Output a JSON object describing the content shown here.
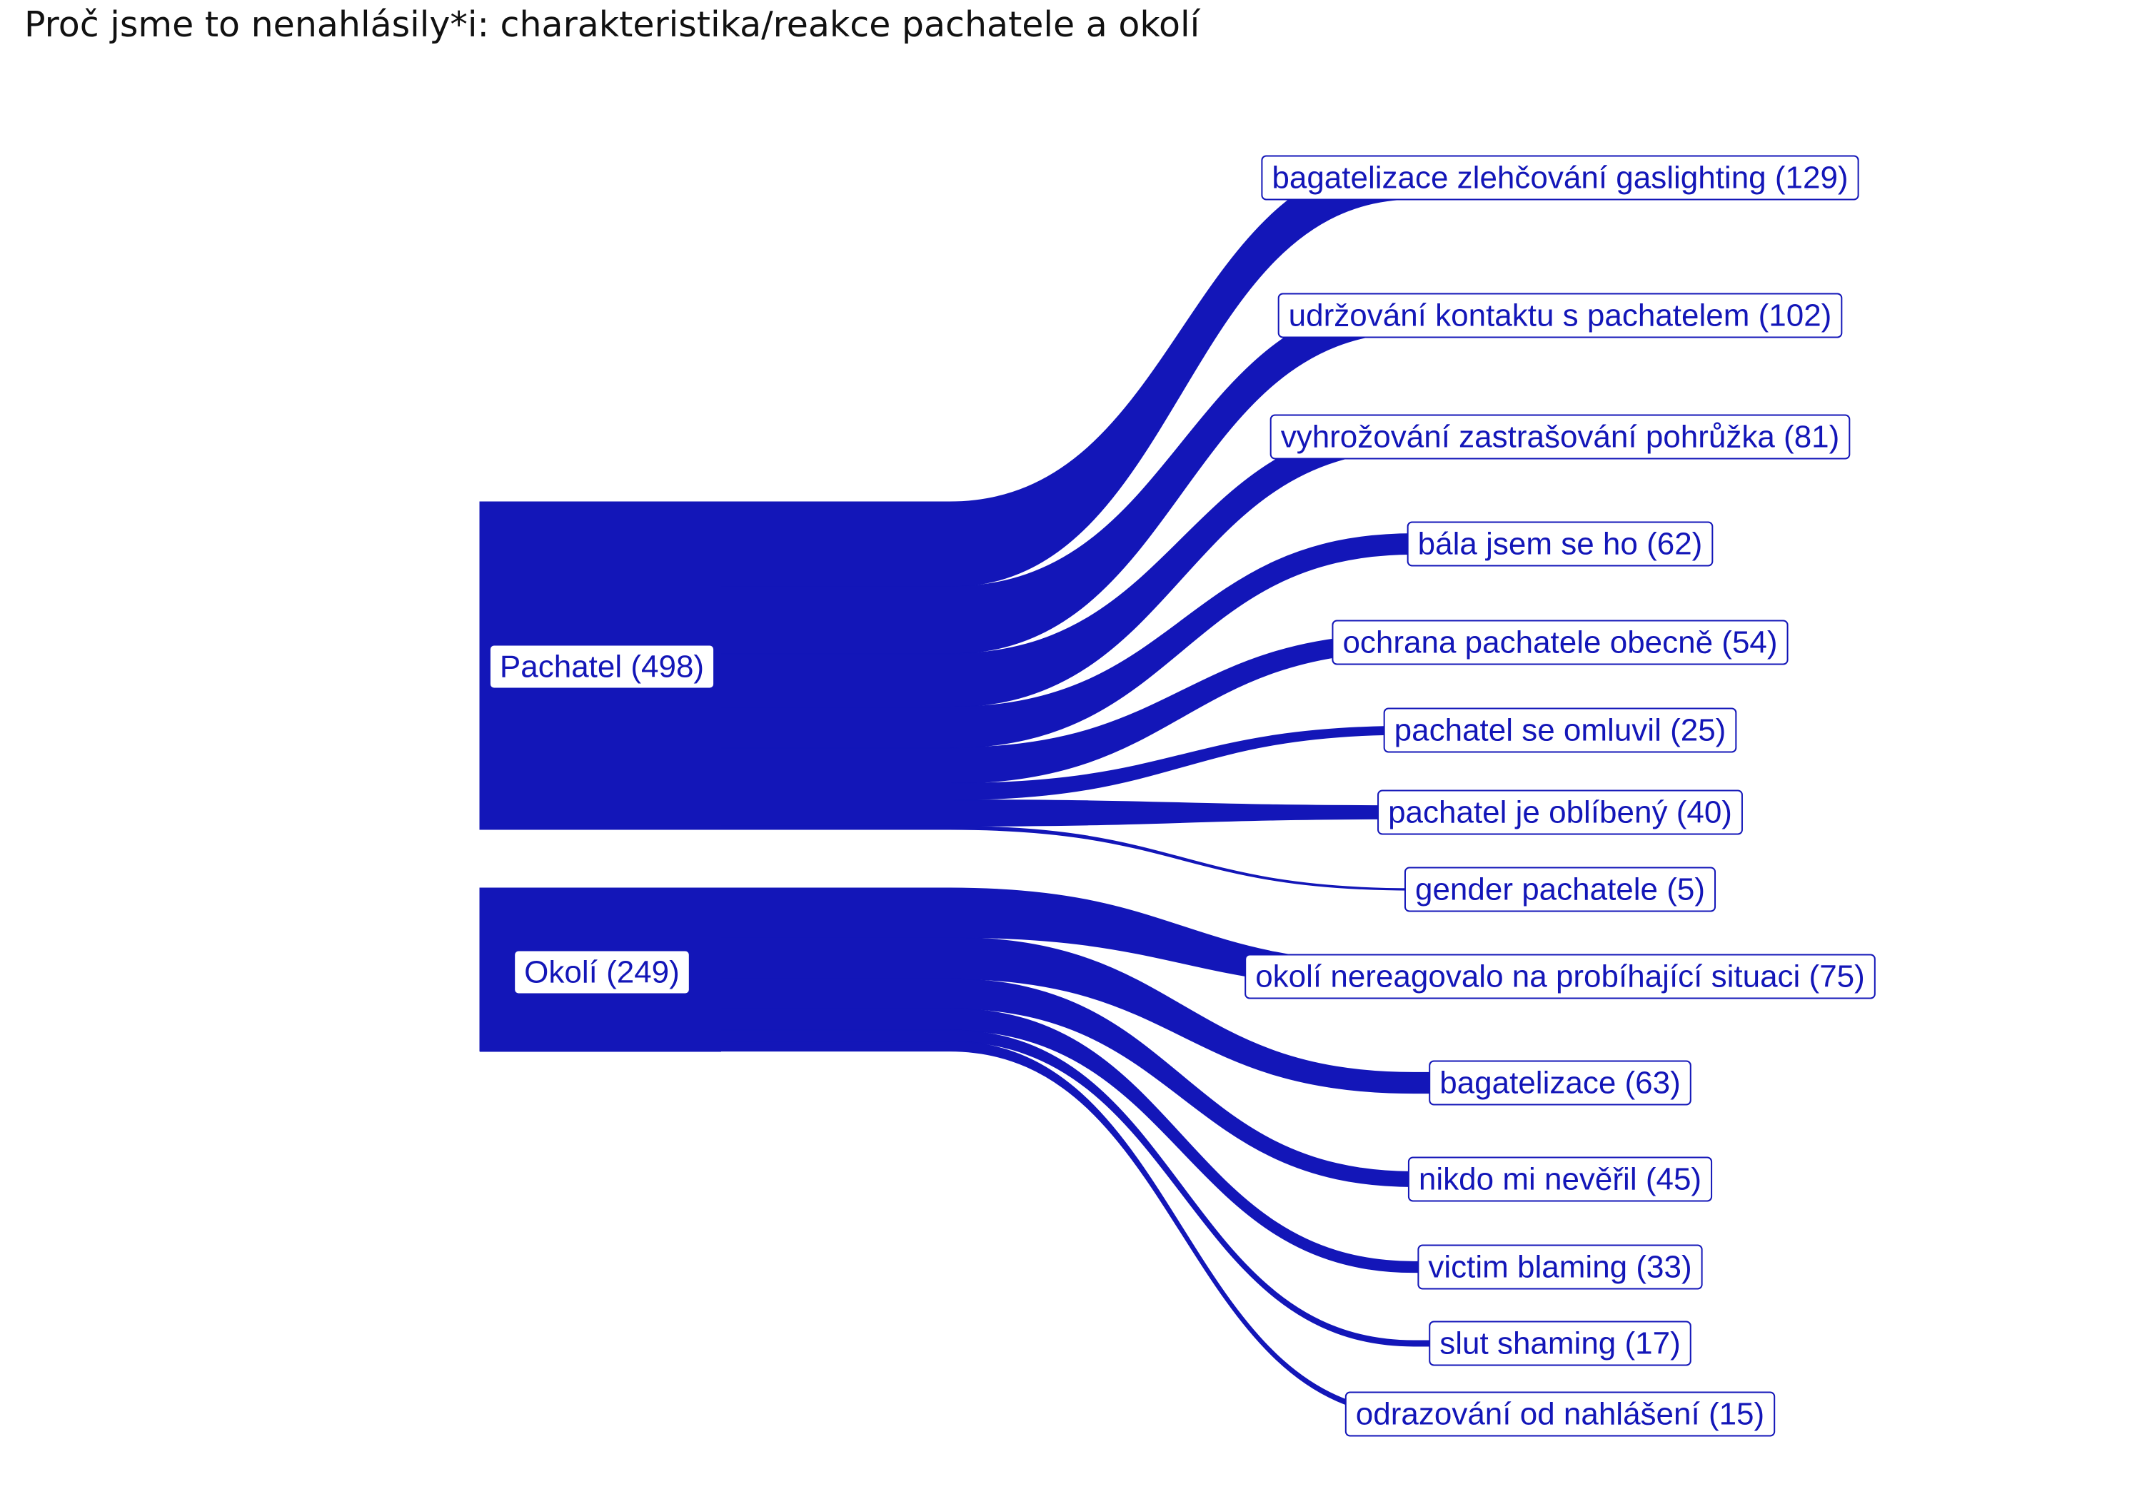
{
  "title": "Proč jsme to nenahlásily*i: charakteristika/reakce pachatele a okolí",
  "colors": {
    "flow": "#1316b8",
    "label_text": "#1316b8",
    "label_border": "#1316b8",
    "background": "#ffffff"
  },
  "chart_data": {
    "type": "sankey",
    "sources": [
      {
        "name": "Pachatel (498)",
        "value": 498
      },
      {
        "name": "Okolí (249)",
        "value": 249
      }
    ],
    "targets": [
      {
        "source": 0,
        "name": "bagatelizace zlehčování gaslighting (129)",
        "value": 129
      },
      {
        "source": 0,
        "name": "udržování kontaktu s pachatelem (102)",
        "value": 102
      },
      {
        "source": 0,
        "name": "vyhrožování zastrašování pohrůžka (81)",
        "value": 81
      },
      {
        "source": 0,
        "name": "bála jsem se ho (62)",
        "value": 62
      },
      {
        "source": 0,
        "name": "ochrana pachatele obecně (54)",
        "value": 54
      },
      {
        "source": 0,
        "name": "pachatel se omluvil (25)",
        "value": 25
      },
      {
        "source": 0,
        "name": "pachatel je oblíbený (40)",
        "value": 40
      },
      {
        "source": 0,
        "name": "gender pachatele (5)",
        "value": 5
      },
      {
        "source": 1,
        "name": "okolí nereagovalo na probíhající situaci (75)",
        "value": 75
      },
      {
        "source": 1,
        "name": "bagatelizace (63)",
        "value": 63
      },
      {
        "source": 1,
        "name": "nikdo mi nevěřil (45)",
        "value": 45
      },
      {
        "source": 1,
        "name": "victim blaming (33)",
        "value": 33
      },
      {
        "source": 1,
        "name": "slut shaming (17)",
        "value": 17
      },
      {
        "source": 1,
        "name": "odrazování od nahlášení (15)",
        "value": 15
      }
    ]
  }
}
